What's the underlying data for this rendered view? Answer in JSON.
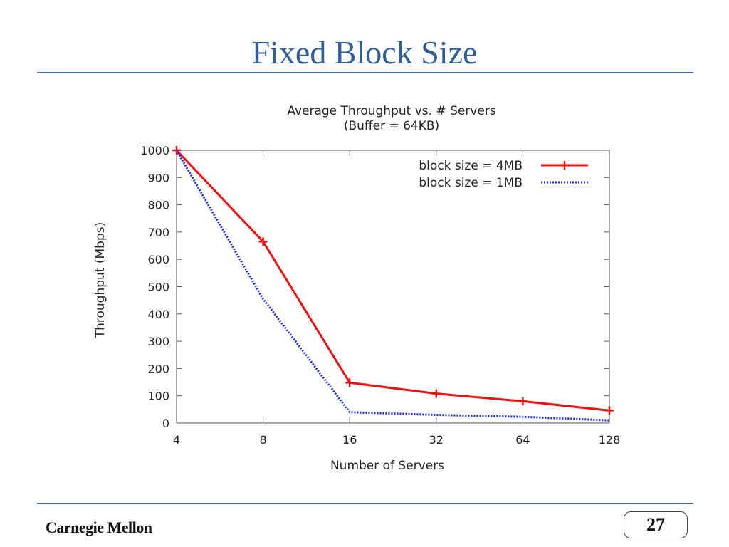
{
  "slide": {
    "title": "Fixed Block Size",
    "footer_brand": "Carnegie Mellon",
    "page_number": "27"
  },
  "chart_data": {
    "type": "line",
    "title": "Average Throughput vs. # Servers",
    "subtitle": "(Buffer = 64KB)",
    "xlabel": "Number of Servers",
    "ylabel": "Throughput (Mbps)",
    "x_scale": "log2",
    "categories": [
      "4",
      "8",
      "16",
      "32",
      "64",
      "128"
    ],
    "x": [
      4,
      8,
      16,
      32,
      64,
      128
    ],
    "yticks": [
      0,
      100,
      200,
      300,
      400,
      500,
      600,
      700,
      800,
      900,
      1000
    ],
    "ylim": [
      0,
      1000
    ],
    "legend_position": "top-right",
    "series": [
      {
        "name": "block size = 4MB",
        "values": [
          1000,
          665,
          148,
          108,
          80,
          46
        ],
        "color": "#ee1111",
        "style": "solid",
        "marker": "plus"
      },
      {
        "name": "block size = 1MB",
        "values": [
          1000,
          455,
          40,
          30,
          23,
          10
        ],
        "color": "#1a2be0",
        "style": "dotted",
        "marker": "none"
      }
    ]
  }
}
